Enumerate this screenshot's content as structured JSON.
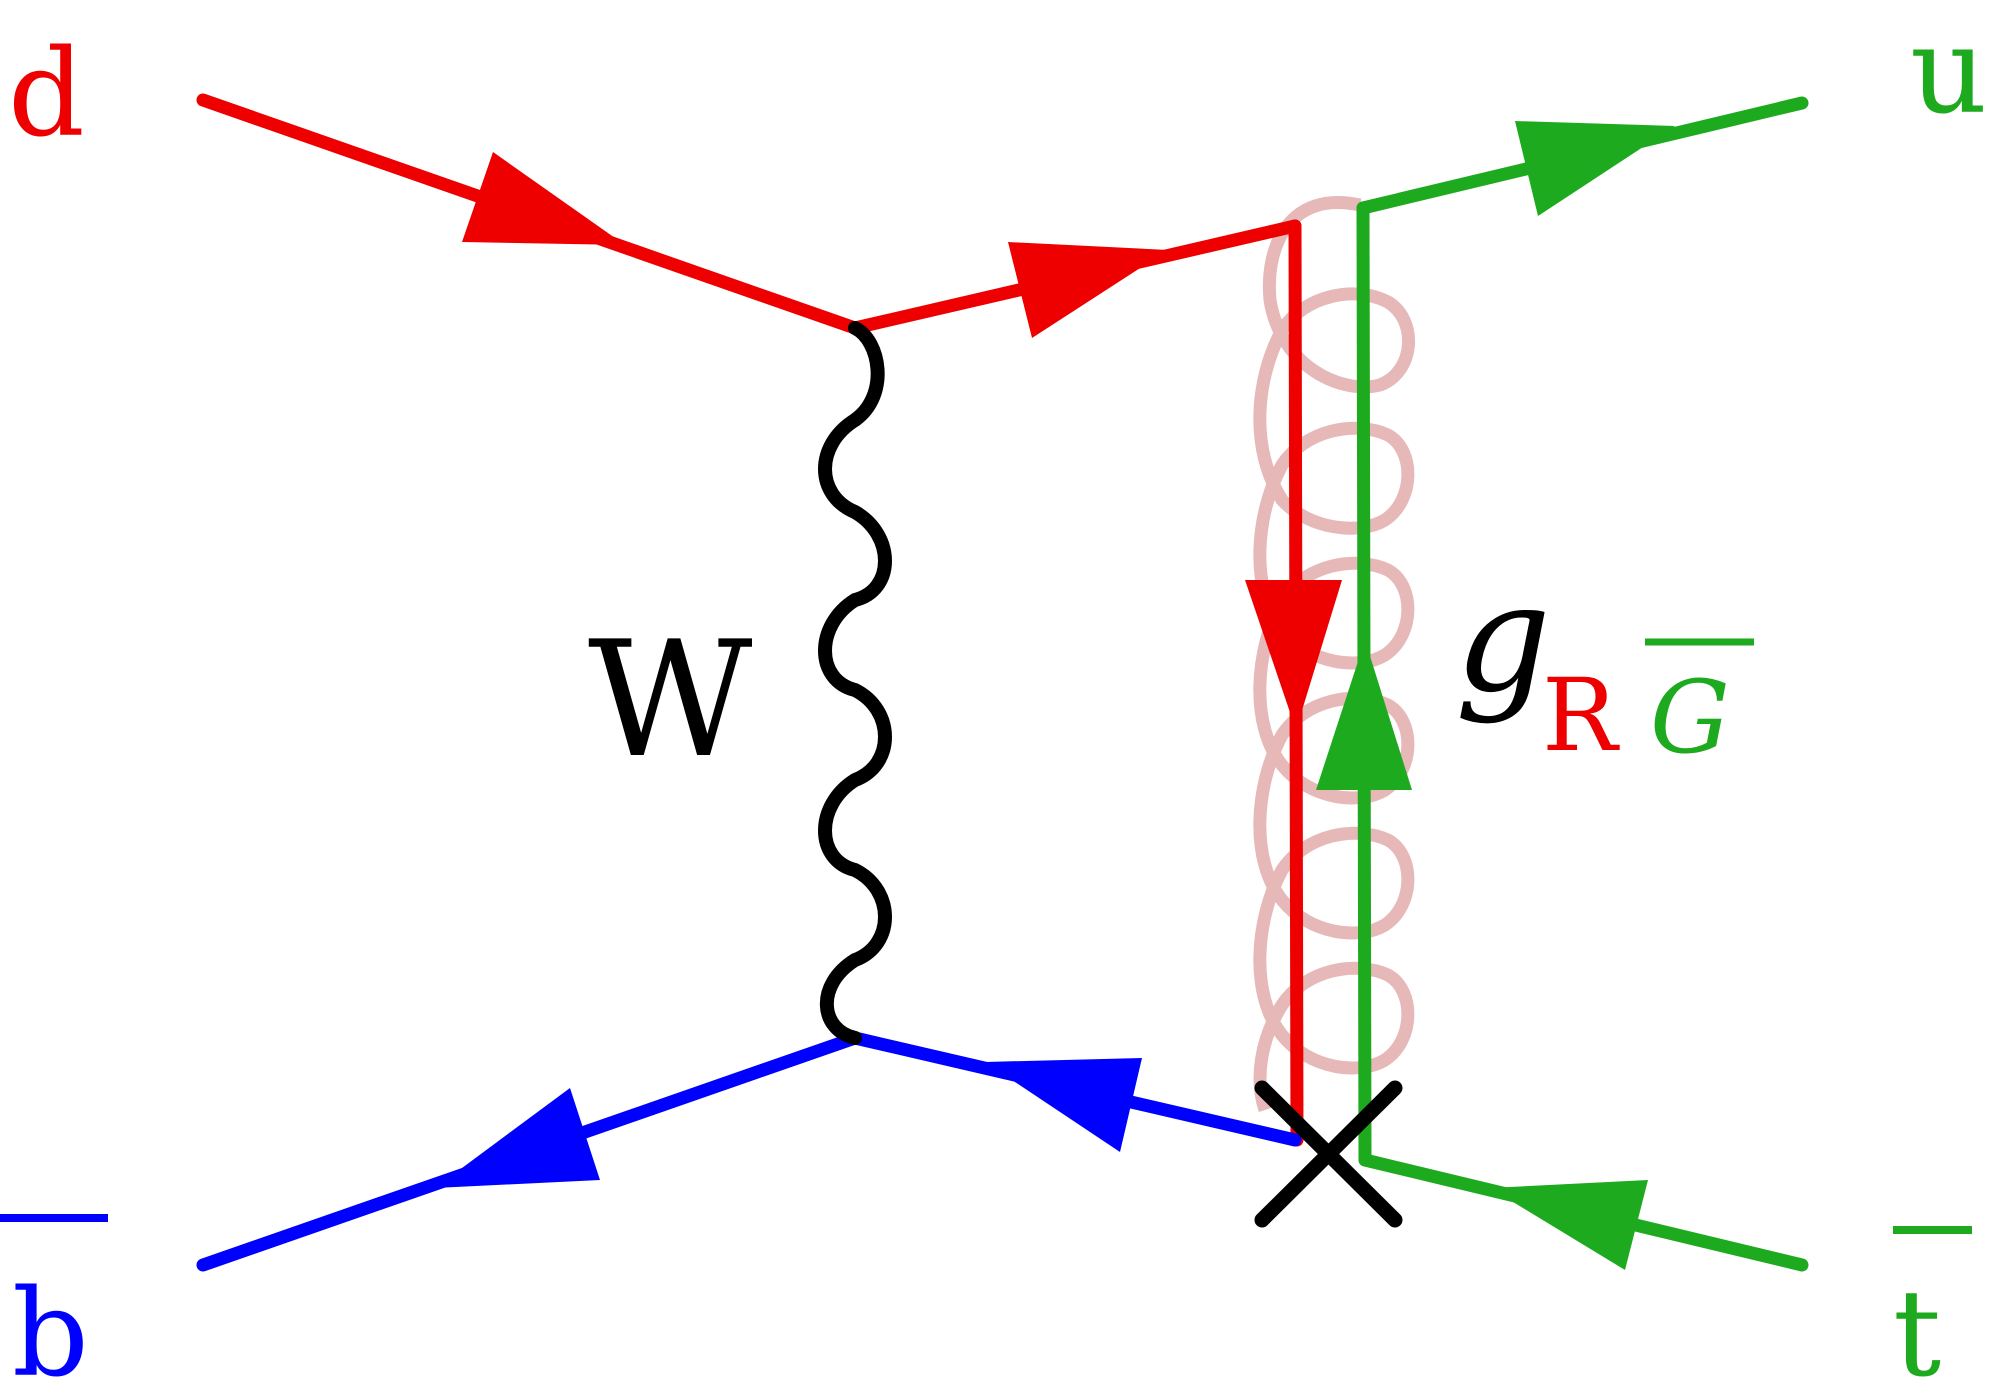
{
  "particles": {
    "d": {
      "label": "d",
      "color": "#ee0000"
    },
    "u": {
      "label": "u",
      "color": "#1eaa1e"
    },
    "b_bar": {
      "label": "b",
      "color": "#0000ff"
    },
    "t_bar": {
      "label": "t",
      "color": "#1eaa1e"
    }
  },
  "boson": {
    "label": "W",
    "color": "#000000"
  },
  "gluon": {
    "symbol": "g",
    "sub_color_1": "R",
    "sub_color_2": "G",
    "line_color": "#e6b8b8"
  },
  "colors": {
    "red": "#ee0000",
    "green": "#1eaa1e",
    "blue": "#0000ff",
    "black": "#000000",
    "gluon_pink": "#e6b8b8"
  }
}
